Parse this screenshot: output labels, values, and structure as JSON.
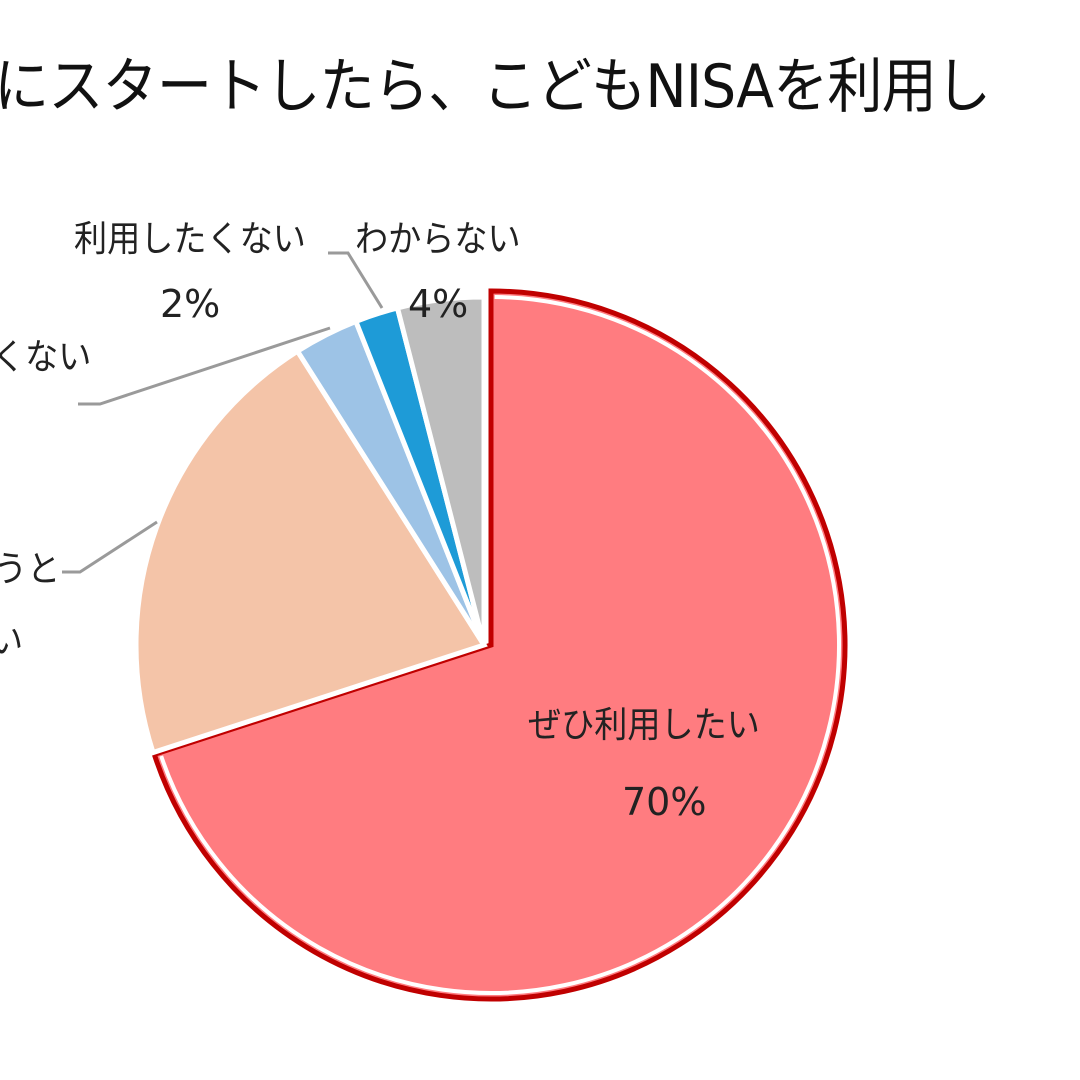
{
  "title": "にスタートしたら、こどもNISAを利用し",
  "chart_data": {
    "type": "pie",
    "title": "…にスタートしたら、こどもNISAを利用し…",
    "start_angle": "12 o'clock, clockwise",
    "slices": [
      {
        "label": "ぜひ利用したい",
        "value": 70,
        "color": "#FF7C80",
        "exploded": true,
        "stroke": "#C00000"
      },
      {
        "label": "…うと…い",
        "value": 21,
        "color": "#F4C4A8"
      },
      {
        "label": "…くない",
        "value": 3,
        "color": "#9DC3E6"
      },
      {
        "label": "利用したくない",
        "value": 2,
        "color": "#1E9BD7"
      },
      {
        "label": "わからない",
        "value": 4,
        "color": "#BDBDBD"
      }
    ],
    "legend": "none (data labels with leader lines)"
  },
  "labels": {
    "want": {
      "name": "ぜひ利用したい",
      "pct": "70%"
    },
    "peach_partial_1": "うと",
    "peach_partial_2": "い",
    "lightblue_partial": "くない",
    "dont_want": {
      "name": "利用したくない",
      "pct": "2%"
    },
    "unknown": {
      "name": "わからない",
      "pct": "4%"
    }
  }
}
